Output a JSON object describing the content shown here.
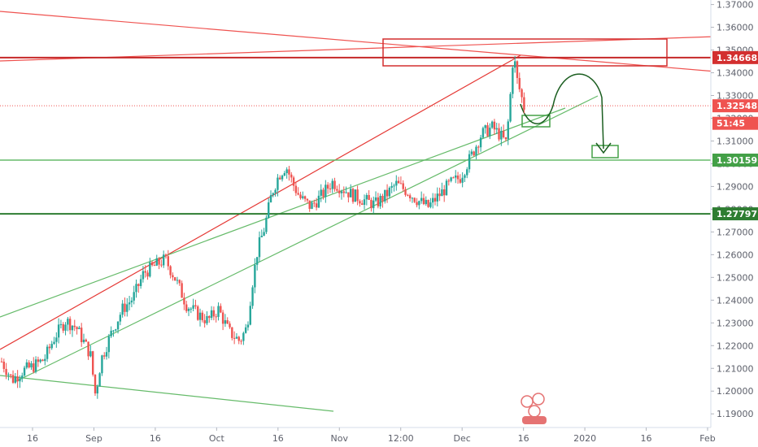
{
  "chart_data": {
    "type": "candlestick",
    "title": "",
    "xlabel": "",
    "ylabel": "",
    "ylim": [
      1.184,
      1.372
    ],
    "y_ticks": [
      "1.37000",
      "1.36000",
      "1.35000",
      "1.34000",
      "1.33000",
      "1.32000",
      "1.31000",
      "1.30000",
      "1.29000",
      "1.28000",
      "1.27000",
      "1.26000",
      "1.25000",
      "1.24000",
      "1.23000",
      "1.22000",
      "1.21000",
      "1.20000",
      "1.19000"
    ],
    "x_ticks": [
      "16",
      "Sep",
      "16",
      "Oct",
      "16",
      "Nov",
      "12:00",
      "Dec",
      "16",
      "2020",
      "16",
      "Feb"
    ],
    "price_labels": [
      {
        "value": 1.34668,
        "text": "1.34668",
        "color": "#d32f2f"
      },
      {
        "value": 1.32548,
        "text": "1.32548",
        "color": "#ef5350"
      },
      {
        "value": 1.31778,
        "text": "51:45",
        "color": "#ef5350"
      },
      {
        "value": 1.30159,
        "text": "1.30159",
        "color": "#43a047"
      },
      {
        "value": 1.27797,
        "text": "1.27797",
        "color": "#2e7d32"
      }
    ],
    "horizontal_levels": [
      {
        "value": 1.34668,
        "color": "#c62828",
        "width": 2
      },
      {
        "value": 1.30159,
        "color": "#66bb6a",
        "width": 1.5
      },
      {
        "value": 1.27797,
        "color": "#2e7d32",
        "width": 2
      },
      {
        "value": 1.32548,
        "color": "#ef5350",
        "width": 1,
        "dashed": true
      }
    ],
    "candles_close_path": [
      [
        0,
        1.213
      ],
      [
        0.015,
        1.205
      ],
      [
        0.03,
        1.209
      ],
      [
        0.045,
        1.211
      ],
      [
        0.06,
        1.214
      ],
      [
        0.075,
        1.224
      ],
      [
        0.09,
        1.231
      ],
      [
        0.105,
        1.228
      ],
      [
        0.115,
        1.222
      ],
      [
        0.125,
        1.216
      ],
      [
        0.132,
        1.198
      ],
      [
        0.14,
        1.214
      ],
      [
        0.155,
        1.226
      ],
      [
        0.17,
        1.236
      ],
      [
        0.185,
        1.241
      ],
      [
        0.2,
        1.252
      ],
      [
        0.215,
        1.255
      ],
      [
        0.23,
        1.258
      ],
      [
        0.245,
        1.249
      ],
      [
        0.26,
        1.238
      ],
      [
        0.275,
        1.234
      ],
      [
        0.29,
        1.231
      ],
      [
        0.305,
        1.236
      ],
      [
        0.32,
        1.226
      ],
      [
        0.335,
        1.222
      ],
      [
        0.345,
        1.228
      ],
      [
        0.352,
        1.246
      ],
      [
        0.36,
        1.262
      ],
      [
        0.37,
        1.272
      ],
      [
        0.38,
        1.287
      ],
      [
        0.39,
        1.295
      ],
      [
        0.4,
        1.299
      ],
      [
        0.41,
        1.291
      ],
      [
        0.42,
        1.285
      ],
      [
        0.435,
        1.281
      ],
      [
        0.45,
        1.286
      ],
      [
        0.465,
        1.292
      ],
      [
        0.48,
        1.289
      ],
      [
        0.495,
        1.286
      ],
      [
        0.51,
        1.284
      ],
      [
        0.525,
        1.282
      ],
      [
        0.54,
        1.286
      ],
      [
        0.555,
        1.291
      ],
      [
        0.57,
        1.288
      ],
      [
        0.585,
        1.284
      ],
      [
        0.6,
        1.281
      ],
      [
        0.615,
        1.286
      ],
      [
        0.63,
        1.291
      ],
      [
        0.645,
        1.294
      ],
      [
        0.66,
        1.303
      ],
      [
        0.675,
        1.313
      ],
      [
        0.69,
        1.316
      ],
      [
        0.7,
        1.313
      ],
      [
        0.71,
        1.309
      ],
      [
        0.715,
        1.327
      ],
      [
        0.72,
        1.349
      ],
      [
        0.725,
        1.337
      ],
      [
        0.73,
        1.331
      ],
      [
        0.735,
        1.325
      ]
    ]
  }
}
